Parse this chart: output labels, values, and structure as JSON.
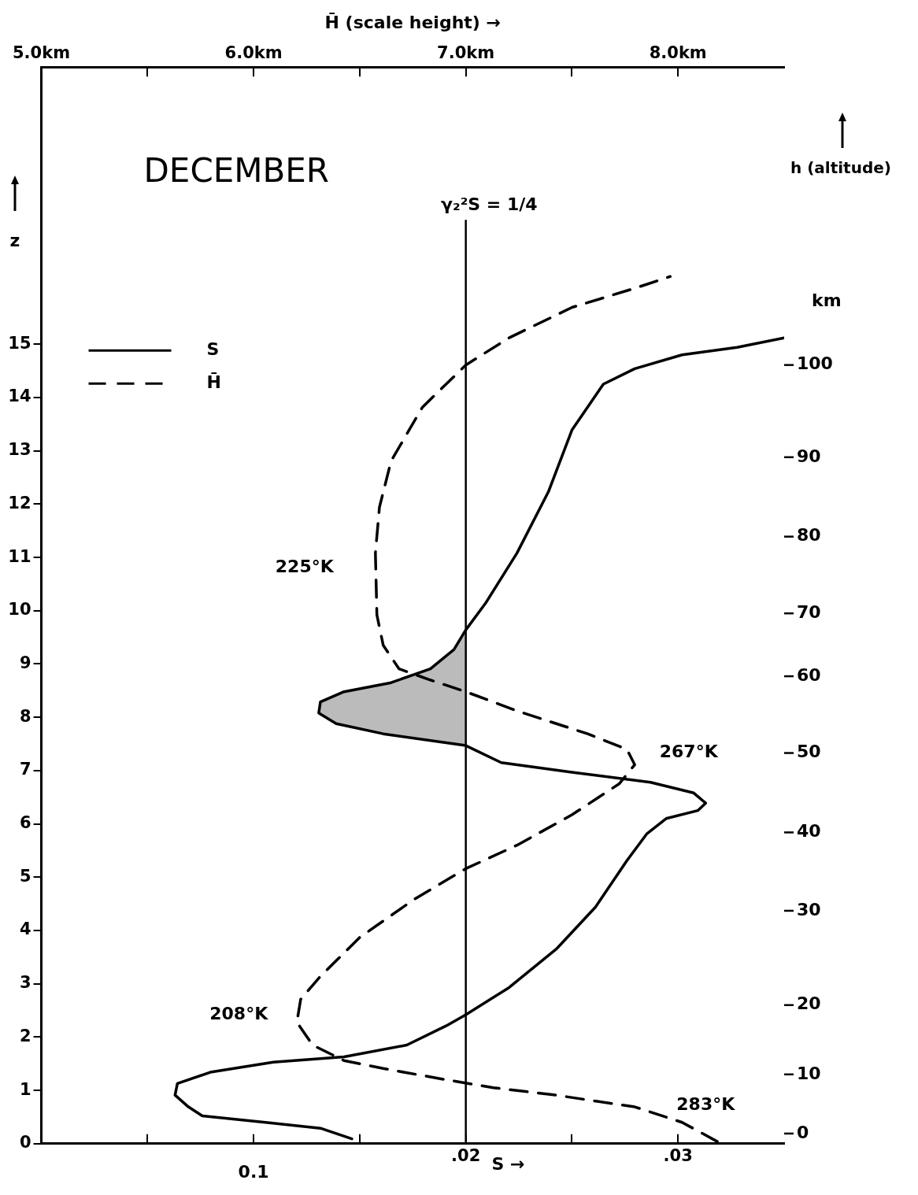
{
  "chart_data": {
    "type": "line",
    "title": "DECEMBER",
    "xlabel": "S →",
    "x2label": "H̄ (scale height) →",
    "ylabel": "z",
    "y2label": "h (altitude)",
    "xlim": [
      0,
      0.035
    ],
    "xticks": [
      {
        "value": 0.005,
        "label": null
      },
      {
        "value": 0.01,
        "label": null
      },
      {
        "value": 0.015,
        "label": null
      },
      {
        "value": 0.02,
        "label": ".02"
      },
      {
        "value": 0.025,
        "label": null
      },
      {
        "value": 0.03,
        "label": ".03"
      }
    ],
    "x2lim": [
      5.0,
      8.5
    ],
    "x2ticks": [
      {
        "value": 5.0,
        "label": "5.0km"
      },
      {
        "value": 5.5,
        "label": null
      },
      {
        "value": 6.0,
        "label": "6.0km"
      },
      {
        "value": 6.5,
        "label": null
      },
      {
        "value": 7.0,
        "label": "7.0km"
      },
      {
        "value": 7.5,
        "label": null
      },
      {
        "value": 8.0,
        "label": "8.0km"
      }
    ],
    "ylim": [
      0,
      20.2
    ],
    "yticks": [
      0,
      1,
      2,
      3,
      4,
      5,
      6,
      7,
      8,
      9,
      10,
      11,
      12,
      13,
      14,
      15
    ],
    "legend": "top left",
    "ref_lines": [
      {
        "axis": "x",
        "value": 0.02,
        "color": "#000000"
      }
    ],
    "annotations": [
      "km",
      "0.1",
      "γ₂²S = 1/4",
      "225°K",
      "208°K",
      "267°K",
      "283°K",
      "0",
      "10",
      "20",
      "30",
      "40",
      "50",
      "60",
      "70",
      "80",
      "90",
      "100"
    ],
    "series": [
      {
        "name": "S",
        "color": "#000000",
        "line_style": "solid",
        "x": [
          0.01463,
          0.01315,
          0.01056,
          0.00759,
          0.00693,
          0.0063,
          0.00641,
          0.00796,
          0.01093,
          0.01426,
          0.01722,
          0.01907,
          0.02,
          0.02204,
          0.02426,
          0.02611,
          0.02759,
          0.02852,
          0.02944,
          0.03093,
          0.0313,
          0.03074,
          0.0287,
          0.025,
          0.02167,
          0.02,
          0.01611,
          0.01389,
          0.01307,
          0.01315,
          0.01426,
          0.01648,
          0.01833,
          0.01944,
          0.02,
          0.02093,
          0.02241,
          0.02389,
          0.025,
          0.02648,
          0.02796,
          0.03019,
          0.03278,
          0.035
        ],
        "values": [
          0.09,
          0.29,
          0.4,
          0.52,
          0.69,
          0.91,
          1.13,
          1.34,
          1.53,
          1.63,
          1.85,
          2.21,
          2.42,
          2.93,
          3.65,
          4.44,
          5.31,
          5.81,
          6.1,
          6.25,
          6.39,
          6.58,
          6.78,
          6.97,
          7.15,
          7.47,
          7.69,
          7.88,
          8.08,
          8.29,
          8.48,
          8.65,
          8.91,
          9.27,
          9.64,
          10.14,
          11.08,
          12.23,
          13.39,
          14.25,
          14.54,
          14.8,
          14.94,
          15.12
        ]
      },
      {
        "name": "H̄",
        "color": "#000000",
        "line_style": "dashed",
        "axis": "x2",
        "x": [
          8.185,
          8.019,
          7.796,
          7.426,
          7.13,
          6.907,
          6.611,
          6.426,
          6.278,
          6.204,
          6.222,
          6.315,
          6.5,
          6.759,
          7.0,
          7.241,
          7.5,
          7.722,
          7.796,
          7.759,
          7.574,
          7.241,
          7.0,
          6.833,
          6.685,
          6.611,
          6.581,
          6.574,
          6.593,
          6.648,
          6.796,
          7.0,
          7.204,
          7.5,
          7.796,
          7.963
        ],
        "values": [
          0.04,
          0.4,
          0.69,
          0.91,
          1.05,
          1.2,
          1.41,
          1.56,
          1.85,
          2.28,
          2.71,
          3.14,
          3.87,
          4.59,
          5.16,
          5.6,
          6.17,
          6.75,
          7.11,
          7.4,
          7.69,
          8.12,
          8.48,
          8.7,
          8.91,
          9.35,
          9.92,
          11.08,
          11.94,
          12.81,
          13.82,
          14.61,
          15.12,
          15.69,
          16.05,
          16.27
        ]
      },
      {
        "type": "area",
        "color": "#bbbbbb",
        "x": [
          0.02,
          0.01611,
          0.01389,
          0.01307,
          0.01315,
          0.01426,
          0.01648,
          0.01833,
          0.01944,
          0.02
        ],
        "values": [
          7.47,
          7.69,
          7.88,
          8.08,
          8.29,
          8.48,
          8.65,
          8.91,
          9.27,
          9.64
        ]
      }
    ]
  }
}
